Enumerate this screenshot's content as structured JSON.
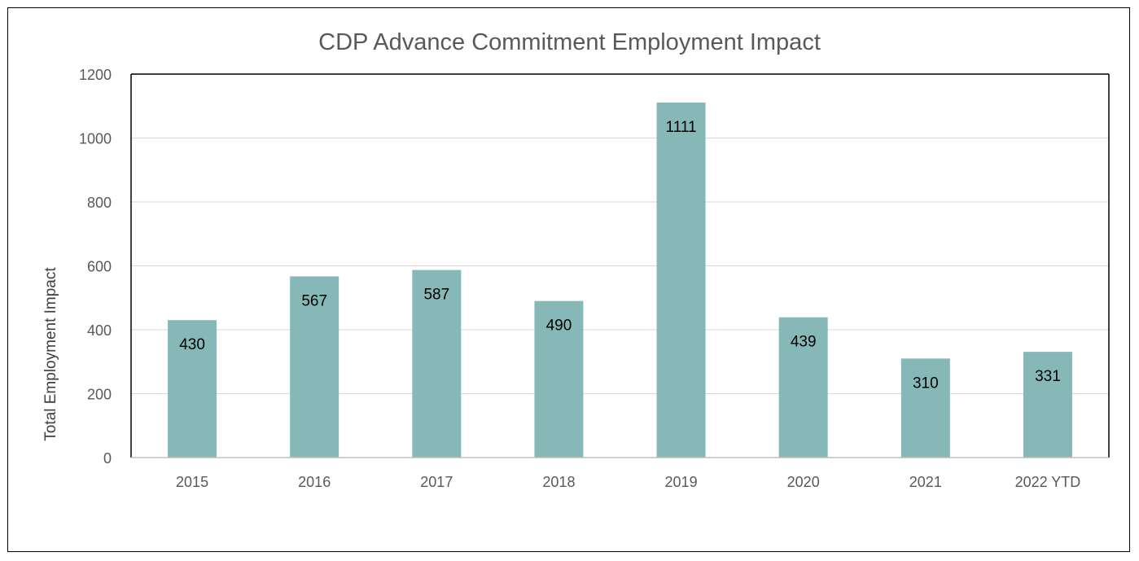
{
  "chart_data": {
    "type": "bar",
    "title": "CDP Advance Commitment Employment Impact",
    "xlabel": "",
    "ylabel": "Total Employment Impact",
    "categories": [
      "2015",
      "2016",
      "2017",
      "2018",
      "2019",
      "2020",
      "2021",
      "2022 YTD"
    ],
    "values": [
      430,
      567,
      587,
      490,
      1111,
      439,
      310,
      331
    ],
    "ylim": [
      0,
      1200
    ],
    "yticks": [
      0,
      200,
      400,
      600,
      800,
      1000,
      1200
    ],
    "grid": true,
    "legend": "none",
    "data_labels": true,
    "colors": {
      "bar": "#86b8b8",
      "grid": "#d9d9d9",
      "axis_text": "#595959",
      "data_label": "#000000"
    }
  }
}
